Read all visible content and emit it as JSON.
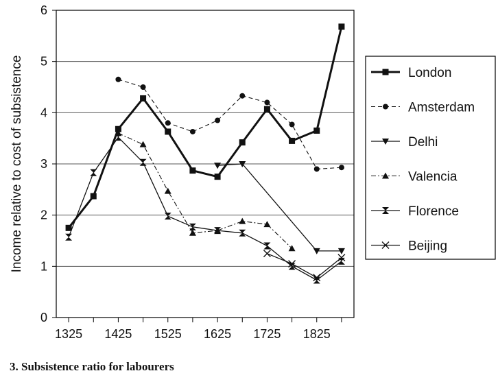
{
  "caption": "3.  Subsistence ratio for labourers",
  "chart_data": {
    "type": "line",
    "ylabel": "Income relative to cost of subsistence",
    "xlabel": "",
    "ylim": [
      0,
      6
    ],
    "yticks": [
      0,
      1,
      2,
      3,
      4,
      5,
      6
    ],
    "xlim": [
      1325,
      1875
    ],
    "xtick_labels": [
      1325,
      1425,
      1525,
      1625,
      1725,
      1825
    ],
    "x_minor_ticks": [
      1325,
      1375,
      1425,
      1475,
      1525,
      1575,
      1625,
      1675,
      1725,
      1775,
      1825,
      1875
    ],
    "grid": "horizontal",
    "legend": "right",
    "series": [
      {
        "name": "London",
        "style": "solid-thick",
        "marker": "square",
        "points": [
          [
            1325,
            1.75
          ],
          [
            1375,
            2.37
          ],
          [
            1425,
            3.68
          ],
          [
            1475,
            4.28
          ],
          [
            1525,
            3.63
          ],
          [
            1575,
            2.87
          ],
          [
            1625,
            2.75
          ],
          [
            1675,
            3.42
          ],
          [
            1725,
            4.07
          ],
          [
            1775,
            3.45
          ],
          [
            1825,
            3.65
          ],
          [
            1875,
            5.68
          ]
        ]
      },
      {
        "name": "Amsterdam",
        "style": "dashed",
        "marker": "circle",
        "points": [
          [
            1425,
            4.65
          ],
          [
            1475,
            4.5
          ],
          [
            1525,
            3.8
          ],
          [
            1575,
            3.63
          ],
          [
            1625,
            3.85
          ],
          [
            1675,
            4.33
          ],
          [
            1725,
            4.2
          ],
          [
            1775,
            3.77
          ],
          [
            1825,
            2.9
          ],
          [
            1875,
            2.93
          ]
        ]
      },
      {
        "name": "Delhi",
        "style": "solid",
        "marker": "triangle-down",
        "points": [
          [
            1625,
            2.97
          ],
          [
            1675,
            3.0
          ],
          [
            1825,
            1.3
          ],
          [
            1875,
            1.3
          ]
        ]
      },
      {
        "name": "Valencia",
        "style": "dashdot",
        "marker": "triangle-up",
        "points": [
          [
            1425,
            3.6
          ],
          [
            1475,
            3.38
          ],
          [
            1525,
            2.47
          ],
          [
            1575,
            1.65
          ],
          [
            1625,
            1.7
          ],
          [
            1675,
            1.88
          ],
          [
            1725,
            1.82
          ],
          [
            1775,
            1.35
          ]
        ]
      },
      {
        "name": "Florence",
        "style": "solid",
        "marker": "hourglass",
        "points": [
          [
            1325,
            1.57
          ],
          [
            1375,
            2.83
          ],
          [
            1425,
            3.52
          ],
          [
            1475,
            3.03
          ],
          [
            1525,
            1.98
          ],
          [
            1575,
            1.77
          ],
          [
            1625,
            1.7
          ],
          [
            1675,
            1.65
          ],
          [
            1725,
            1.4
          ],
          [
            1775,
            1.0
          ],
          [
            1825,
            0.73
          ],
          [
            1875,
            1.1
          ]
        ]
      },
      {
        "name": "Beijing",
        "style": "solid",
        "marker": "x",
        "points": [
          [
            1725,
            1.25
          ],
          [
            1775,
            1.05
          ],
          [
            1825,
            0.78
          ],
          [
            1875,
            1.17
          ]
        ]
      }
    ]
  }
}
